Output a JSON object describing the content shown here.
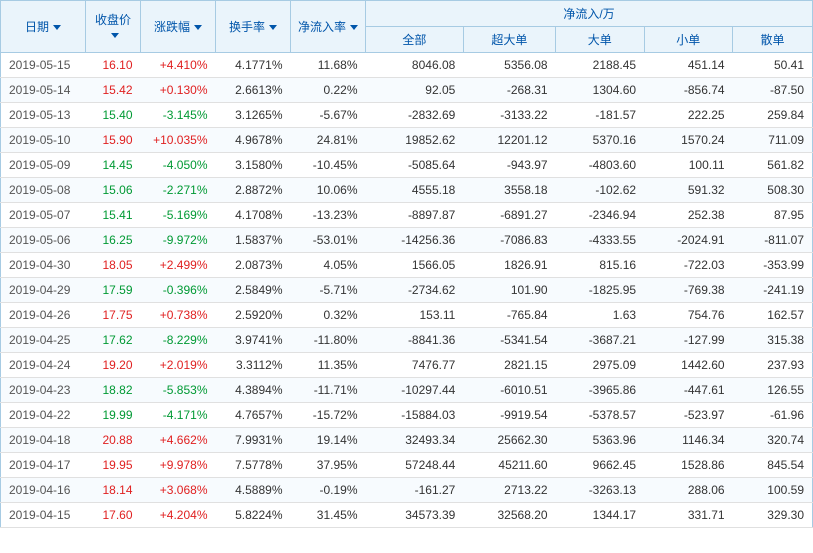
{
  "headers": {
    "date": "日期",
    "close": "收盘价",
    "change": "涨跌幅",
    "turnover": "换手率",
    "inflow_rate": "净流入率",
    "inflow_group": "净流入/万",
    "all": "全部",
    "xl": "超大单",
    "lg": "大单",
    "sm": "小单",
    "sc": "散单"
  },
  "colors": {
    "header_bg": "#eaf4fb",
    "header_text": "#0055aa",
    "border": "#a7cbe3",
    "up": "#e02020",
    "down": "#009933"
  },
  "columns": [
    "date",
    "close",
    "change",
    "turnover",
    "inflow_rate",
    "all",
    "xl",
    "lg",
    "sm",
    "sc"
  ],
  "rows": [
    {
      "date": "2019-05-15",
      "close": "16.10",
      "close_dir": "up",
      "change": "+4.410%",
      "change_dir": "up",
      "turnover": "4.1771%",
      "inflow_rate": "11.68%",
      "all": "8046.08",
      "xl": "5356.08",
      "lg": "2188.45",
      "sm": "451.14",
      "sc": "50.41"
    },
    {
      "date": "2019-05-14",
      "close": "15.42",
      "close_dir": "up",
      "change": "+0.130%",
      "change_dir": "up",
      "turnover": "2.6613%",
      "inflow_rate": "0.22%",
      "all": "92.05",
      "xl": "-268.31",
      "lg": "1304.60",
      "sm": "-856.74",
      "sc": "-87.50"
    },
    {
      "date": "2019-05-13",
      "close": "15.40",
      "close_dir": "down",
      "change": "-3.145%",
      "change_dir": "down",
      "turnover": "3.1265%",
      "inflow_rate": "-5.67%",
      "all": "-2832.69",
      "xl": "-3133.22",
      "lg": "-181.57",
      "sm": "222.25",
      "sc": "259.84"
    },
    {
      "date": "2019-05-10",
      "close": "15.90",
      "close_dir": "up",
      "change": "+10.035%",
      "change_dir": "up",
      "turnover": "4.9678%",
      "inflow_rate": "24.81%",
      "all": "19852.62",
      "xl": "12201.12",
      "lg": "5370.16",
      "sm": "1570.24",
      "sc": "711.09"
    },
    {
      "date": "2019-05-09",
      "close": "14.45",
      "close_dir": "down",
      "change": "-4.050%",
      "change_dir": "down",
      "turnover": "3.1580%",
      "inflow_rate": "-10.45%",
      "all": "-5085.64",
      "xl": "-943.97",
      "lg": "-4803.60",
      "sm": "100.11",
      "sc": "561.82"
    },
    {
      "date": "2019-05-08",
      "close": "15.06",
      "close_dir": "down",
      "change": "-2.271%",
      "change_dir": "down",
      "turnover": "2.8872%",
      "inflow_rate": "10.06%",
      "all": "4555.18",
      "xl": "3558.18",
      "lg": "-102.62",
      "sm": "591.32",
      "sc": "508.30"
    },
    {
      "date": "2019-05-07",
      "close": "15.41",
      "close_dir": "down",
      "change": "-5.169%",
      "change_dir": "down",
      "turnover": "4.1708%",
      "inflow_rate": "-13.23%",
      "all": "-8897.87",
      "xl": "-6891.27",
      "lg": "-2346.94",
      "sm": "252.38",
      "sc": "87.95"
    },
    {
      "date": "2019-05-06",
      "close": "16.25",
      "close_dir": "down",
      "change": "-9.972%",
      "change_dir": "down",
      "turnover": "1.5837%",
      "inflow_rate": "-53.01%",
      "all": "-14256.36",
      "xl": "-7086.83",
      "lg": "-4333.55",
      "sm": "-2024.91",
      "sc": "-811.07"
    },
    {
      "date": "2019-04-30",
      "close": "18.05",
      "close_dir": "up",
      "change": "+2.499%",
      "change_dir": "up",
      "turnover": "2.0873%",
      "inflow_rate": "4.05%",
      "all": "1566.05",
      "xl": "1826.91",
      "lg": "815.16",
      "sm": "-722.03",
      "sc": "-353.99"
    },
    {
      "date": "2019-04-29",
      "close": "17.59",
      "close_dir": "down",
      "change": "-0.396%",
      "change_dir": "down",
      "turnover": "2.5849%",
      "inflow_rate": "-5.71%",
      "all": "-2734.62",
      "xl": "101.90",
      "lg": "-1825.95",
      "sm": "-769.38",
      "sc": "-241.19"
    },
    {
      "date": "2019-04-26",
      "close": "17.75",
      "close_dir": "up",
      "change": "+0.738%",
      "change_dir": "up",
      "turnover": "2.5920%",
      "inflow_rate": "0.32%",
      "all": "153.11",
      "xl": "-765.84",
      "lg": "1.63",
      "sm": "754.76",
      "sc": "162.57"
    },
    {
      "date": "2019-04-25",
      "close": "17.62",
      "close_dir": "down",
      "change": "-8.229%",
      "change_dir": "down",
      "turnover": "3.9741%",
      "inflow_rate": "-11.80%",
      "all": "-8841.36",
      "xl": "-5341.54",
      "lg": "-3687.21",
      "sm": "-127.99",
      "sc": "315.38"
    },
    {
      "date": "2019-04-24",
      "close": "19.20",
      "close_dir": "up",
      "change": "+2.019%",
      "change_dir": "up",
      "turnover": "3.3112%",
      "inflow_rate": "11.35%",
      "all": "7476.77",
      "xl": "2821.15",
      "lg": "2975.09",
      "sm": "1442.60",
      "sc": "237.93"
    },
    {
      "date": "2019-04-23",
      "close": "18.82",
      "close_dir": "down",
      "change": "-5.853%",
      "change_dir": "down",
      "turnover": "4.3894%",
      "inflow_rate": "-11.71%",
      "all": "-10297.44",
      "xl": "-6010.51",
      "lg": "-3965.86",
      "sm": "-447.61",
      "sc": "126.55"
    },
    {
      "date": "2019-04-22",
      "close": "19.99",
      "close_dir": "down",
      "change": "-4.171%",
      "change_dir": "down",
      "turnover": "4.7657%",
      "inflow_rate": "-15.72%",
      "all": "-15884.03",
      "xl": "-9919.54",
      "lg": "-5378.57",
      "sm": "-523.97",
      "sc": "-61.96"
    },
    {
      "date": "2019-04-18",
      "close": "20.88",
      "close_dir": "up",
      "change": "+4.662%",
      "change_dir": "up",
      "turnover": "7.9931%",
      "inflow_rate": "19.14%",
      "all": "32493.34",
      "xl": "25662.30",
      "lg": "5363.96",
      "sm": "1146.34",
      "sc": "320.74"
    },
    {
      "date": "2019-04-17",
      "close": "19.95",
      "close_dir": "up",
      "change": "+9.978%",
      "change_dir": "up",
      "turnover": "7.5778%",
      "inflow_rate": "37.95%",
      "all": "57248.44",
      "xl": "45211.60",
      "lg": "9662.45",
      "sm": "1528.86",
      "sc": "845.54"
    },
    {
      "date": "2019-04-16",
      "close": "18.14",
      "close_dir": "up",
      "change": "+3.068%",
      "change_dir": "up",
      "turnover": "4.5889%",
      "inflow_rate": "-0.19%",
      "all": "-161.27",
      "xl": "2713.22",
      "lg": "-3263.13",
      "sm": "288.06",
      "sc": "100.59"
    },
    {
      "date": "2019-04-15",
      "close": "17.60",
      "close_dir": "up",
      "change": "+4.204%",
      "change_dir": "up",
      "turnover": "5.8224%",
      "inflow_rate": "31.45%",
      "all": "34573.39",
      "xl": "32568.20",
      "lg": "1344.17",
      "sm": "331.71",
      "sc": "329.30"
    }
  ]
}
